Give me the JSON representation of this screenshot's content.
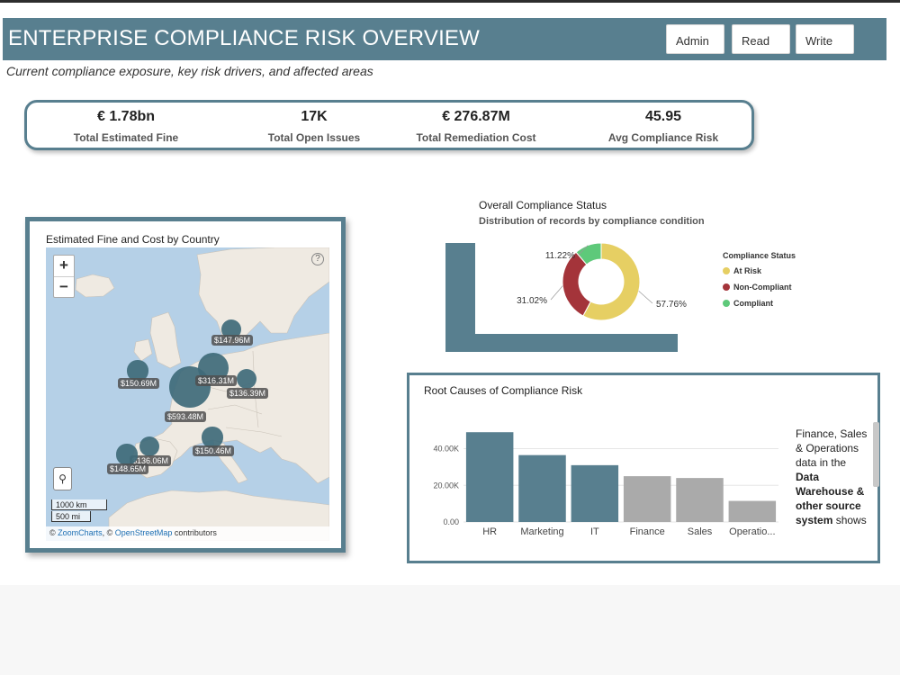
{
  "header": {
    "title": "ENTERPRISE COMPLIANCE RISK OVERVIEW",
    "subtitle": "Current compliance exposure, key risk drivers, and affected areas",
    "buttons": [
      "Admin",
      "Read",
      "Write"
    ]
  },
  "kpis": [
    {
      "value": "€ 1.78bn",
      "label": "Total Estimated Fine"
    },
    {
      "value": "17K",
      "label": "Total Open Issues"
    },
    {
      "value": "€ 276.87M",
      "label": "Total Remediation Cost"
    },
    {
      "value": "45.95",
      "label": "Avg Compliance Risk"
    }
  ],
  "map": {
    "title": "Estimated Fine and Cost by Country",
    "zoom_in": "+",
    "zoom_out": "−",
    "help": "?",
    "scale_km": "1000 km",
    "scale_mi": "500 mi",
    "attribution_prefix": "© ",
    "attribution_link1": "ZoomCharts",
    "attribution_mid": ", © ",
    "attribution_link2": "OpenStreetMap",
    "attribution_suffix": " contributors",
    "bubbles": [
      {
        "label": "$147.96M",
        "value_m": 147.96
      },
      {
        "label": "$150.69M",
        "value_m": 150.69
      },
      {
        "label": "$593.48M",
        "value_m": 593.48
      },
      {
        "label": "$316.31M",
        "value_m": 316.31
      },
      {
        "label": "$136.39M",
        "value_m": 136.39
      },
      {
        "label": "$136.06M",
        "value_m": 136.06
      },
      {
        "label": "$148.65M",
        "value_m": 148.65
      },
      {
        "label": "$150.46M",
        "value_m": 150.46
      }
    ],
    "bubble_color": "#3f6a7a"
  },
  "status": {
    "title": "Overall Compliance Status",
    "subtitle": "Distribution of records by compliance condition",
    "legend_title": "Compliance Status",
    "accent": "#587f8f"
  },
  "root_causes": {
    "title": "Root Causes of Compliance Risk",
    "text_plain_1": "Finance, Sales & Operations data in the ",
    "text_bold": "Data Warehouse & other source system",
    "text_plain_2": " shows"
  },
  "chart_data": [
    {
      "type": "pie",
      "title": "Overall Compliance Status",
      "subtitle": "Distribution of records by compliance condition",
      "categories": [
        "At Risk",
        "Non-Compliant",
        "Compliant"
      ],
      "values": [
        57.76,
        31.02,
        11.22
      ],
      "labels": [
        "57.76%",
        "31.02%",
        "11.22%"
      ],
      "colors": [
        "#e6cf63",
        "#a4343a",
        "#5ec97a"
      ],
      "legend_position": "right"
    },
    {
      "type": "bar",
      "title": "Root Causes of Compliance Risk",
      "categories": [
        "HR",
        "Marketing",
        "IT",
        "Finance",
        "Sales",
        "Operatio..."
      ],
      "values": [
        49000,
        36500,
        31000,
        25000,
        24000,
        11500
      ],
      "colors": [
        "#587f8f",
        "#587f8f",
        "#587f8f",
        "#aaaaaa",
        "#aaaaaa",
        "#aaaaaa"
      ],
      "yticks": [
        "0.00",
        "20.00K",
        "40.00K"
      ],
      "ytick_values": [
        0,
        20000,
        40000
      ],
      "ylim": [
        0,
        55000
      ],
      "grid": true
    }
  ]
}
